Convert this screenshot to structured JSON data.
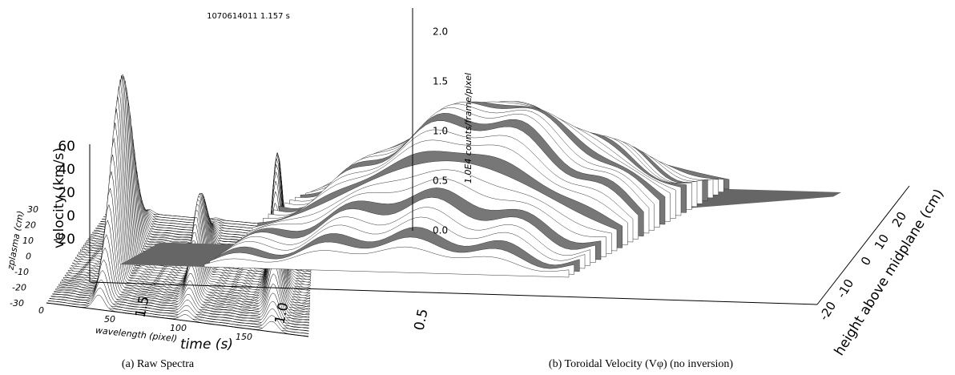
{
  "panel_a": {
    "header": "1070614011  1.157 s",
    "z_axis_label": "1.0E4 counts/frame/pixel",
    "z_ticks": [
      "0.0",
      "0.5",
      "1.0",
      "1.5",
      "2.0"
    ],
    "y_axis_label": "zplasma (cm)",
    "y_ticks": [
      "30",
      "20",
      "10",
      "0",
      "-10",
      "-20",
      "-30"
    ],
    "x_axis_label": "wavelength (pixel)",
    "x_ticks": [
      "0",
      "50",
      "100",
      "150"
    ],
    "caption": "(a) Raw Spectra"
  },
  "panel_b": {
    "z_axis_label": "velocity (km/s)",
    "z_ticks": [
      "60",
      "40",
      "20",
      "0",
      "-20"
    ],
    "x_axis_label": "time (s)",
    "x_ticks": [
      "1.5",
      "1.0",
      "0.5"
    ],
    "y_axis_label": "height above midplane (cm)",
    "y_ticks": [
      "-20",
      "-10",
      "0",
      "10",
      "20"
    ],
    "caption": "(b) Toroidal Velocity (Vφ) (no inversion)"
  }
}
